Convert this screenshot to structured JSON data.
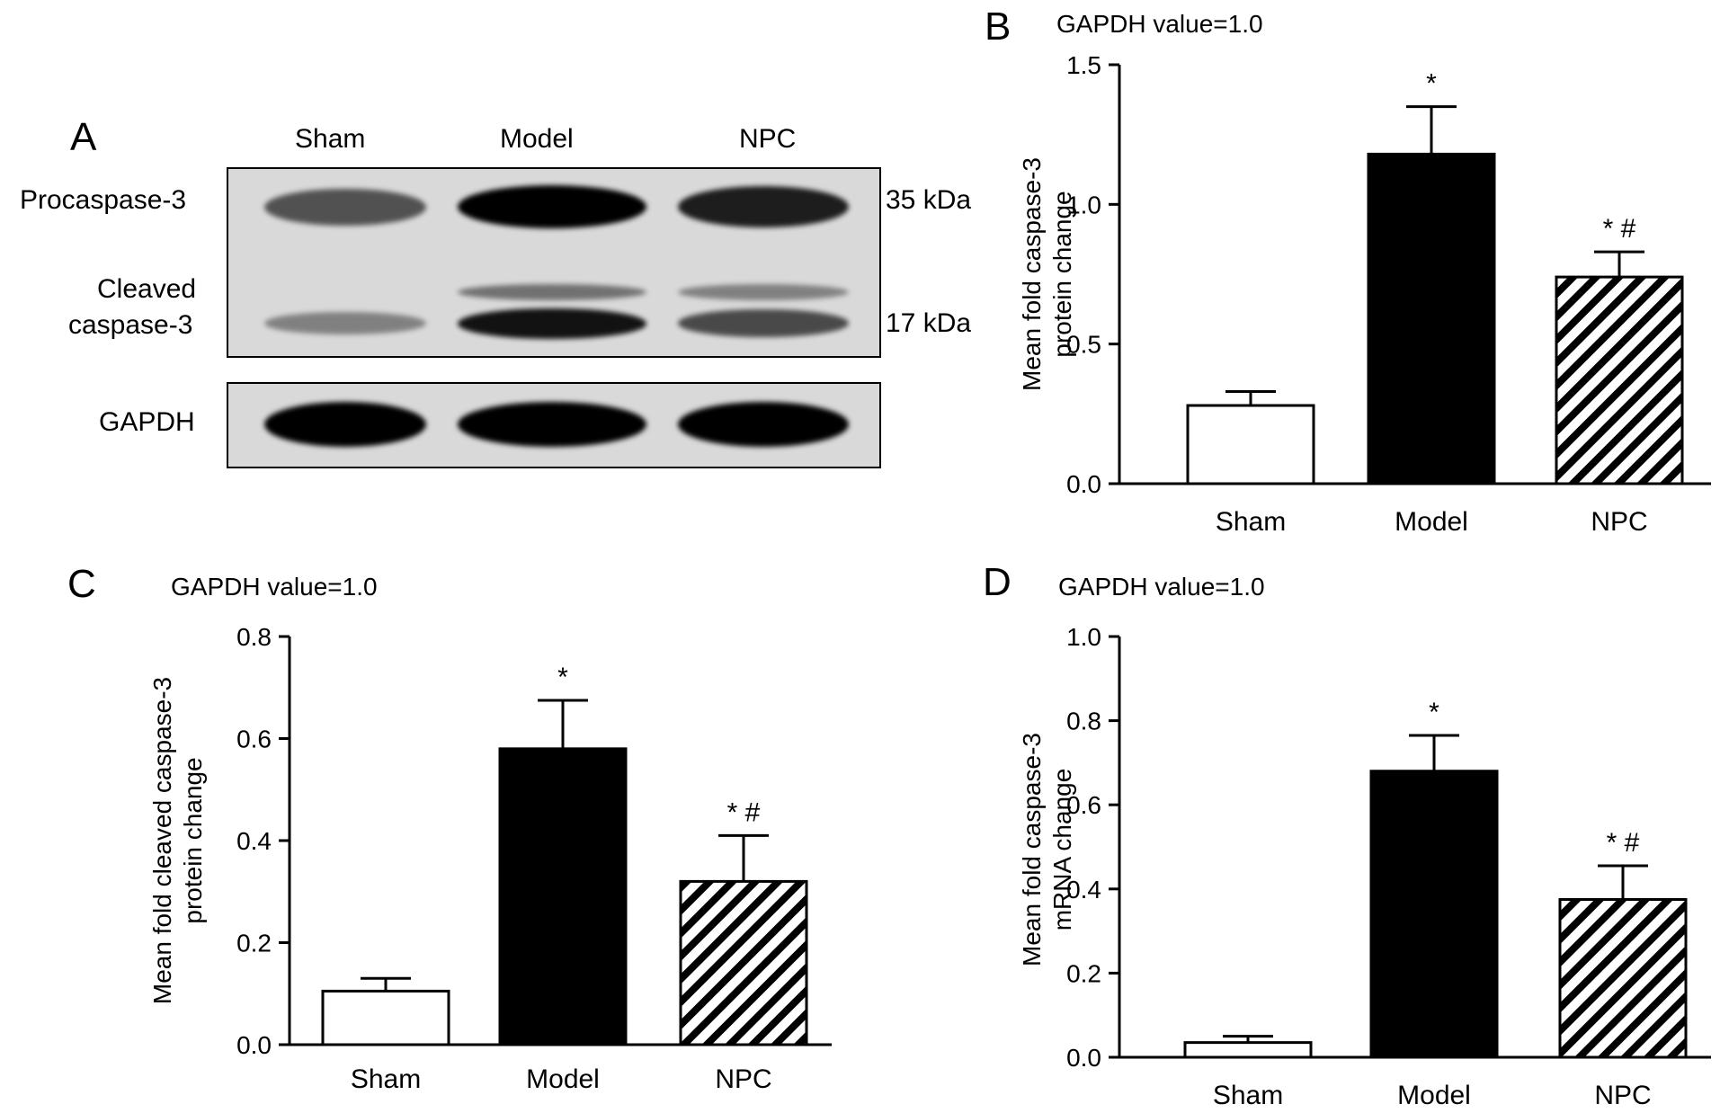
{
  "panel_a": {
    "letter": "A",
    "lanes": [
      "Sham",
      "Model",
      "NPC"
    ],
    "rows": {
      "procaspase": "Procaspase-3",
      "cleaved_1": "Cleaved",
      "cleaved_2": "caspase-3",
      "gapdh": "GAPDH"
    },
    "markers": {
      "kda35": "35 kDa",
      "kda17": "17 kDa"
    },
    "band_intensity": {
      "procaspase": [
        0.55,
        1.0,
        0.85
      ],
      "cleaved_upper": [
        0.0,
        0.35,
        0.25
      ],
      "cleaved_lower": [
        0.25,
        0.9,
        0.6
      ],
      "gapdh": [
        1.0,
        1.0,
        1.0
      ]
    }
  },
  "chart_data": [
    {
      "id": "B",
      "type": "bar",
      "letter": "B",
      "title": "GAPDH value=1.0",
      "ylabel_lines": [
        "Mean fold caspase-3",
        "protein change"
      ],
      "categories": [
        "Sham",
        "Model",
        "NPC"
      ],
      "values": [
        0.28,
        1.18,
        0.74
      ],
      "errors": [
        0.05,
        0.17,
        0.09
      ],
      "annotations": [
        "",
        "*",
        "* #"
      ],
      "fills": [
        "white",
        "black",
        "hatch"
      ],
      "ylim": [
        0,
        1.5
      ],
      "yticks": [
        0.0,
        0.5,
        1.0,
        1.5
      ],
      "ytick_labels": [
        "0.0",
        "0.5",
        "1.0",
        "1.5"
      ]
    },
    {
      "id": "C",
      "type": "bar",
      "letter": "C",
      "title": "GAPDH value=1.0",
      "ylabel_lines": [
        "Mean fold cleaved caspase-3",
        "protein change"
      ],
      "categories": [
        "Sham",
        "Model",
        "NPC"
      ],
      "values": [
        0.105,
        0.58,
        0.32
      ],
      "errors": [
        0.025,
        0.095,
        0.09
      ],
      "annotations": [
        "",
        "*",
        "* #"
      ],
      "fills": [
        "white",
        "black",
        "hatch"
      ],
      "ylim": [
        0,
        0.8
      ],
      "yticks": [
        0.0,
        0.2,
        0.4,
        0.6,
        0.8
      ],
      "ytick_labels": [
        "0.0",
        "0.2",
        "0.4",
        "0.6",
        "0.8"
      ]
    },
    {
      "id": "D",
      "type": "bar",
      "letter": "D",
      "title": "GAPDH value=1.0",
      "ylabel_lines": [
        "Mean fold caspase-3",
        "mRNA change"
      ],
      "categories": [
        "Sham",
        "Model",
        "NPC"
      ],
      "values": [
        0.035,
        0.68,
        0.375
      ],
      "errors": [
        0.015,
        0.085,
        0.08
      ],
      "annotations": [
        "",
        "*",
        "* #"
      ],
      "fills": [
        "white",
        "black",
        "hatch"
      ],
      "ylim": [
        0,
        1.0
      ],
      "yticks": [
        0.0,
        0.2,
        0.4,
        0.6,
        0.8,
        1.0
      ],
      "ytick_labels": [
        "0.0",
        "0.2",
        "0.4",
        "0.6",
        "0.8",
        "1.0"
      ]
    }
  ]
}
